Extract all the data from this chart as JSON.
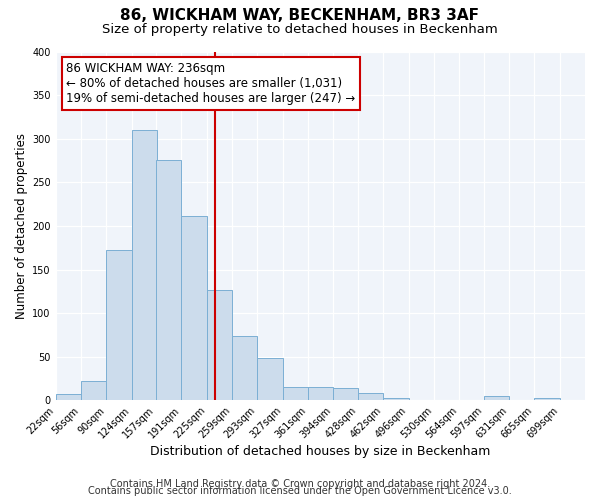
{
  "title": "86, WICKHAM WAY, BECKENHAM, BR3 3AF",
  "subtitle": "Size of property relative to detached houses in Beckenham",
  "xlabel": "Distribution of detached houses by size in Beckenham",
  "ylabel": "Number of detached properties",
  "bin_labels": [
    "22sqm",
    "56sqm",
    "90sqm",
    "124sqm",
    "157sqm",
    "191sqm",
    "225sqm",
    "259sqm",
    "293sqm",
    "327sqm",
    "361sqm",
    "394sqm",
    "428sqm",
    "462sqm",
    "496sqm",
    "530sqm",
    "564sqm",
    "597sqm",
    "631sqm",
    "665sqm",
    "699sqm"
  ],
  "bin_edges": [
    22,
    56,
    90,
    124,
    157,
    191,
    225,
    259,
    293,
    327,
    361,
    394,
    428,
    462,
    496,
    530,
    564,
    597,
    631,
    665,
    699
  ],
  "bar_heights": [
    7,
    22,
    172,
    310,
    276,
    211,
    127,
    74,
    49,
    16,
    15,
    14,
    9,
    3,
    1,
    1,
    0,
    5,
    0,
    3
  ],
  "bar_facecolor": "#ccdcec",
  "bar_edgecolor": "#7bafd4",
  "vline_x": 236,
  "vline_color": "#cc0000",
  "annotation_line1": "86 WICKHAM WAY: 236sqm",
  "annotation_line2": "← 80% of detached houses are smaller (1,031)",
  "annotation_line3": "19% of semi-detached houses are larger (247) →",
  "annotation_box_edgecolor": "#cc0000",
  "annotation_box_facecolor": "#ffffff",
  "ylim": [
    0,
    400
  ],
  "yticks": [
    0,
    50,
    100,
    150,
    200,
    250,
    300,
    350,
    400
  ],
  "footer1": "Contains HM Land Registry data © Crown copyright and database right 2024.",
  "footer2": "Contains public sector information licensed under the Open Government Licence v3.0.",
  "bg_color": "#ffffff",
  "plot_bg_color": "#f0f4fa",
  "title_fontsize": 11,
  "subtitle_fontsize": 9.5,
  "xlabel_fontsize": 9,
  "ylabel_fontsize": 8.5,
  "tick_fontsize": 7,
  "footer_fontsize": 7,
  "annotation_fontsize": 8.5
}
